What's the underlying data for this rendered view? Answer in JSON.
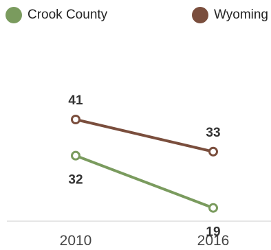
{
  "chart_data": {
    "type": "line",
    "title": "",
    "xlabel": "",
    "ylabel": "",
    "x": [
      "2010",
      "2016"
    ],
    "grid": false,
    "legend_placement": "top",
    "series": [
      {
        "name": "Crook County",
        "values": [
          32,
          19
        ],
        "color": "#7a9b5e"
      },
      {
        "name": "Wyoming",
        "values": [
          41,
          33
        ],
        "color": "#7a4e3d"
      }
    ]
  }
}
